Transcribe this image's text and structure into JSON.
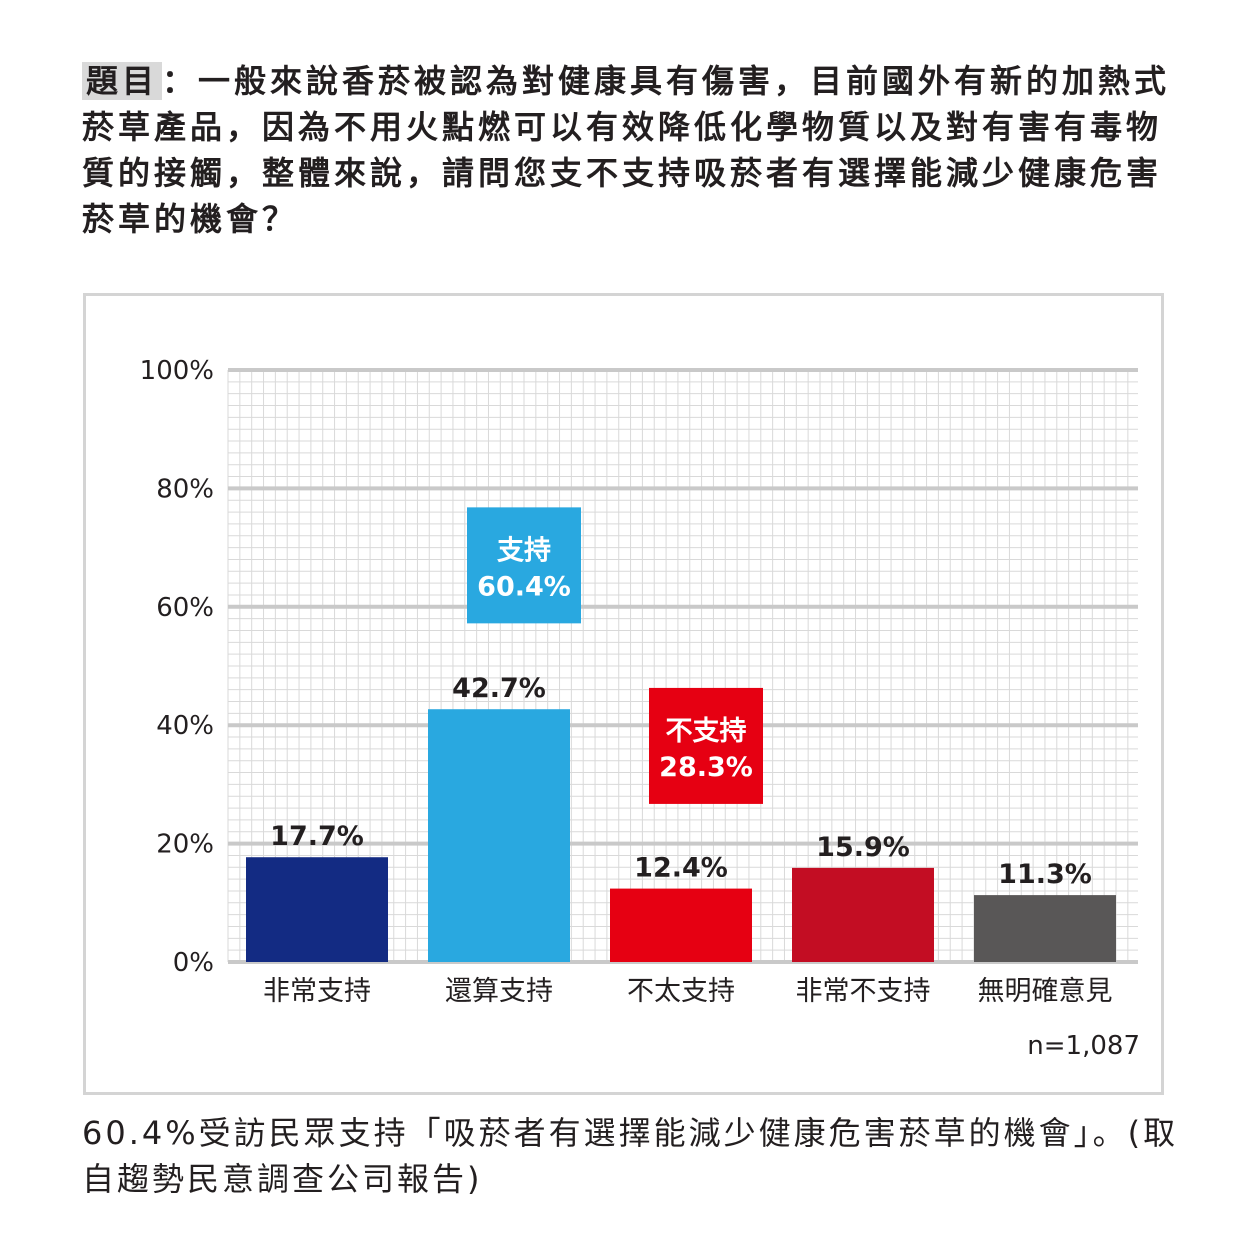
{
  "question": {
    "label": "題目",
    "text": "：一般來說香菸被認為對健康具有傷害，目前國外有新的加熱式菸草產品，因為不用火點燃可以有效降低化學物質以及對有害有毒物質的接觸，整體來說，請問您支不支持吸菸者有選擇能減少健康危害菸草的機會？"
  },
  "chart_data": {
    "type": "bar",
    "categories": [
      "非常支持",
      "還算支持",
      "不太支持",
      "非常不支持",
      "無明確意見"
    ],
    "values": [
      17.7,
      42.7,
      12.4,
      15.9,
      11.3
    ],
    "value_labels": [
      "17.7%",
      "42.7%",
      "12.4%",
      "15.9%",
      "11.3%"
    ],
    "colors": [
      "#132b83",
      "#29a8e0",
      "#e60012",
      "#c30d23",
      "#595757"
    ],
    "ylim": [
      0,
      100
    ],
    "yticks": [
      0,
      20,
      40,
      60,
      80,
      100
    ],
    "ytick_labels": [
      "0%",
      "20%",
      "40%",
      "60%",
      "80%",
      "100%"
    ],
    "grid": true,
    "annotations": [
      {
        "title": "支持",
        "value": "60.4%",
        "color": "#29a8e0",
        "category": "還算支持",
        "level": 67
      },
      {
        "title": "不支持",
        "value": "28.3%",
        "color": "#e60012",
        "category": "不太支持",
        "level": 36.5
      }
    ],
    "sample_size": "n=1,087"
  },
  "caption": "60.4%受訪民眾支持「吸菸者有選擇能減少健康危害菸草的機會」。(取自趨勢民意調查公司報告)"
}
